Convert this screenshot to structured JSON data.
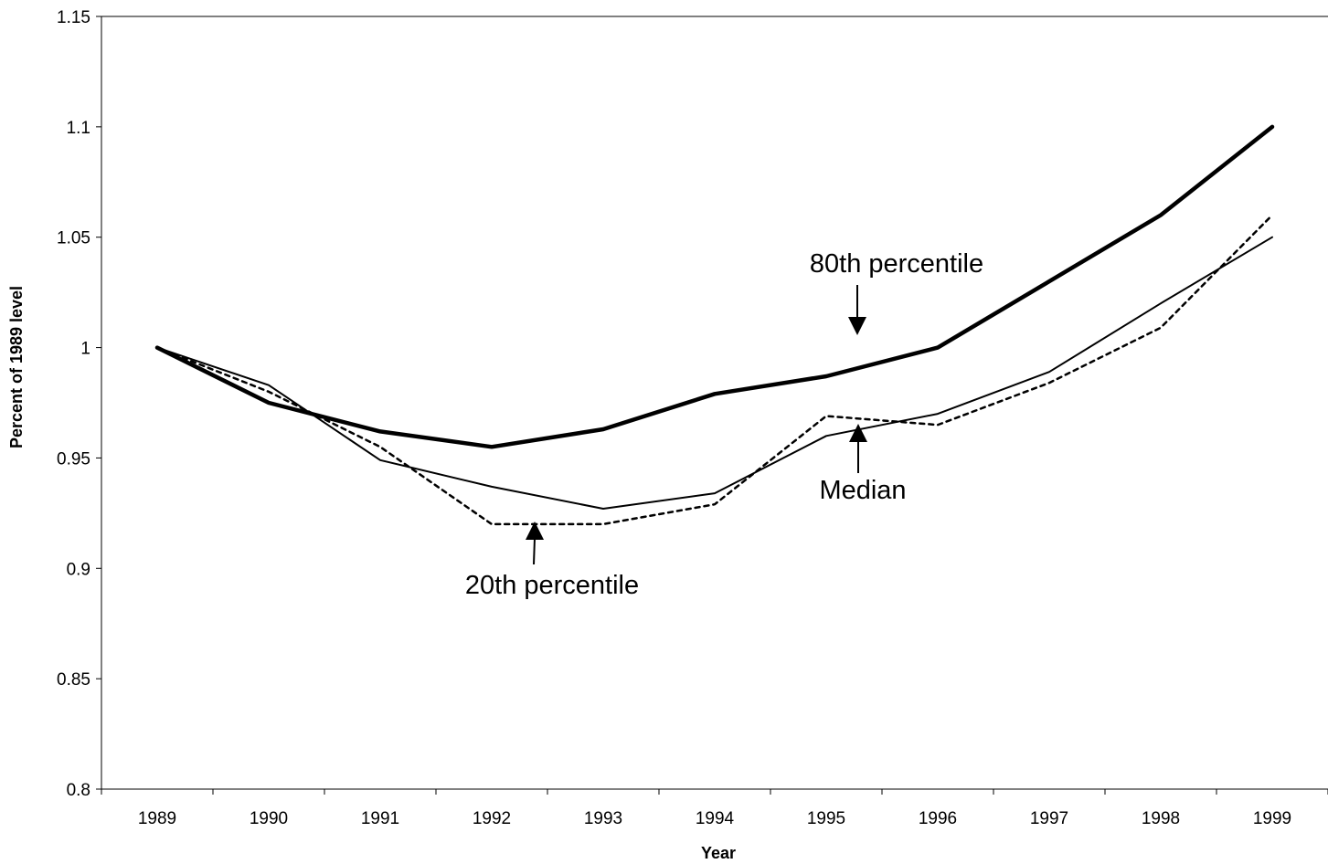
{
  "chart_data": {
    "type": "line",
    "title": "",
    "xlabel": "Year",
    "ylabel": "Percent of 1989 level",
    "categories": [
      "1989",
      "1990",
      "1991",
      "1992",
      "1993",
      "1994",
      "1995",
      "1996",
      "1997",
      "1998",
      "1999"
    ],
    "y_ticks": [
      "0.8",
      "0.85",
      "0.9",
      "0.95",
      "1",
      "1.05",
      "1.1",
      "1.15"
    ],
    "ylim": [
      0.8,
      1.15
    ],
    "grid": false,
    "legend": "none",
    "series": [
      {
        "key": "p80",
        "name": "80th percentile",
        "style": "thick-solid",
        "color": "#000000",
        "values": [
          1.0,
          0.975,
          0.962,
          0.955,
          0.963,
          0.979,
          0.987,
          1.0,
          1.03,
          1.06,
          1.1
        ]
      },
      {
        "key": "median",
        "name": "Median",
        "style": "thin-solid",
        "color": "#000000",
        "values": [
          1.0,
          0.983,
          0.949,
          0.937,
          0.927,
          0.934,
          0.96,
          0.97,
          0.989,
          1.02,
          1.05
        ]
      },
      {
        "key": "p20",
        "name": "20th percentile",
        "style": "dashed",
        "color": "#000000",
        "values": [
          1.0,
          0.98,
          0.955,
          0.92,
          0.92,
          0.929,
          0.969,
          0.965,
          0.984,
          1.009,
          1.06
        ]
      }
    ],
    "annotations": [
      {
        "key": "p80",
        "text": "80th percentile",
        "arrow": "down"
      },
      {
        "key": "median",
        "text": "Median",
        "arrow": "up"
      },
      {
        "key": "p20",
        "text": "20th percentile",
        "arrow": "up"
      }
    ]
  }
}
